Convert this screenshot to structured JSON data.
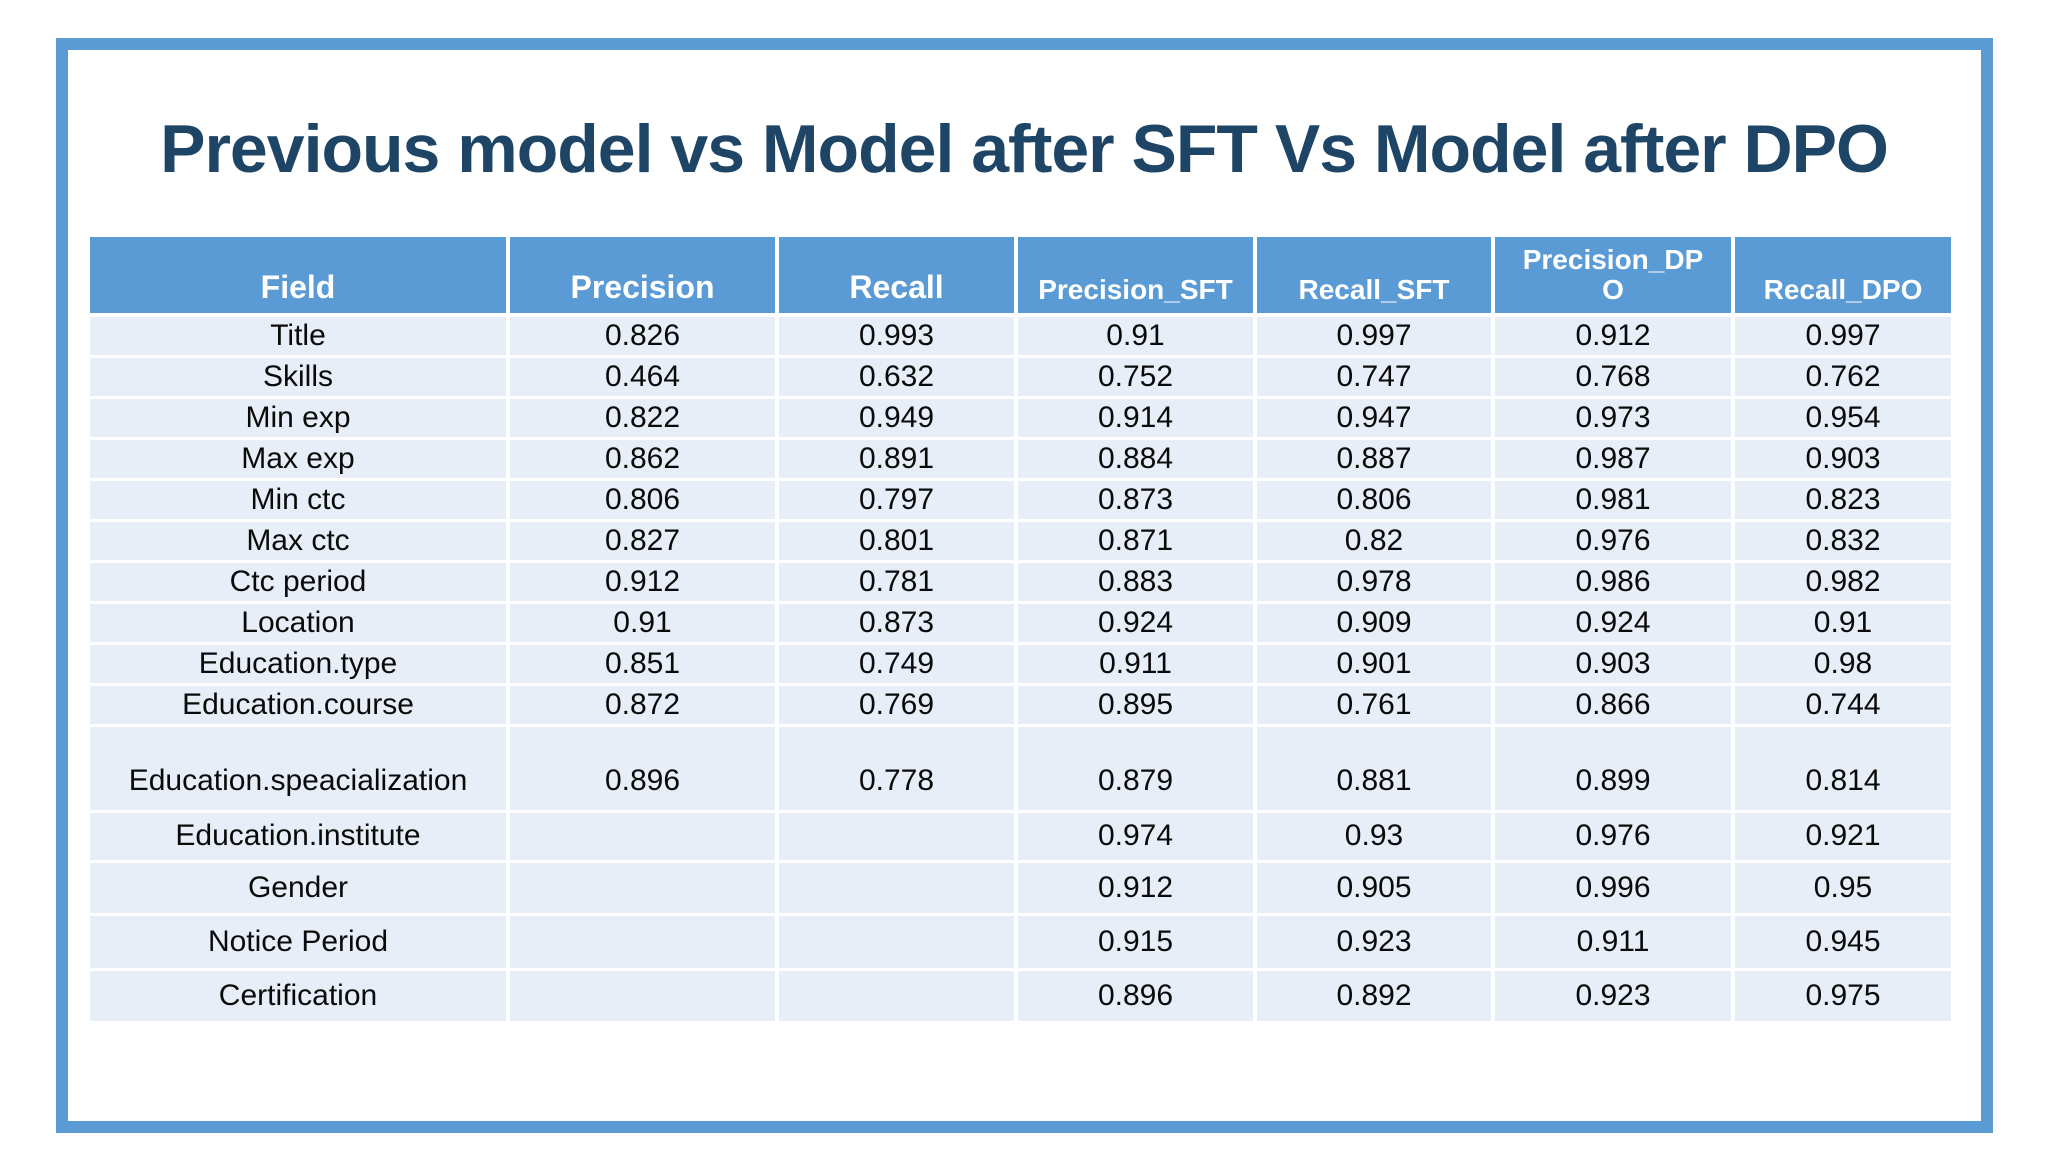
{
  "slide": {
    "title": "Previous model vs Model after SFT Vs Model after DPO",
    "accent_color": "#5B9BD5",
    "title_color": "#1E4566",
    "row_fill_color": "#E8EEF7",
    "header_text_color": "#FFFFFF"
  },
  "table": {
    "columns": [
      "Field",
      "Precision",
      "Recall",
      "Precision_SFT",
      "Recall_SFT",
      "Precision_DPO",
      "Recall_DPO"
    ],
    "rows": [
      [
        "Title",
        "0.826",
        "0.993",
        "0.91",
        "0.997",
        "0.912",
        "0.997"
      ],
      [
        "Skills",
        "0.464",
        "0.632",
        "0.752",
        "0.747",
        "0.768",
        "0.762"
      ],
      [
        "Min exp",
        "0.822",
        "0.949",
        "0.914",
        "0.947",
        "0.973",
        "0.954"
      ],
      [
        "Max exp",
        "0.862",
        "0.891",
        "0.884",
        "0.887",
        "0.987",
        "0.903"
      ],
      [
        "Min ctc",
        "0.806",
        "0.797",
        "0.873",
        "0.806",
        "0.981",
        "0.823"
      ],
      [
        "Max ctc",
        "0.827",
        "0.801",
        "0.871",
        "0.82",
        "0.976",
        "0.832"
      ],
      [
        "Ctc period",
        "0.912",
        "0.781",
        "0.883",
        "0.978",
        "0.986",
        "0.982"
      ],
      [
        "Location",
        "0.91",
        "0.873",
        "0.924",
        "0.909",
        "0.924",
        "0.91"
      ],
      [
        "Education.type",
        "0.851",
        "0.749",
        "0.911",
        "0.901",
        "0.903",
        "0.98"
      ],
      [
        "Education.course",
        "0.872",
        "0.769",
        "0.895",
        "0.761",
        "0.866",
        "0.744"
      ],
      [
        "Education.speacialization",
        "0.896",
        "0.778",
        "0.879",
        "0.881",
        "0.899",
        "0.814"
      ],
      [
        "Education.institute",
        "",
        "",
        "0.974",
        "0.93",
        "0.976",
        "0.921"
      ],
      [
        "Gender",
        "",
        "",
        "0.912",
        "0.905",
        "0.996",
        "0.95"
      ],
      [
        "Notice Period",
        "",
        "",
        "0.915",
        "0.923",
        "0.911",
        "0.945"
      ],
      [
        "Certification",
        "",
        "",
        "0.896",
        "0.892",
        "0.923",
        "0.975"
      ]
    ]
  }
}
